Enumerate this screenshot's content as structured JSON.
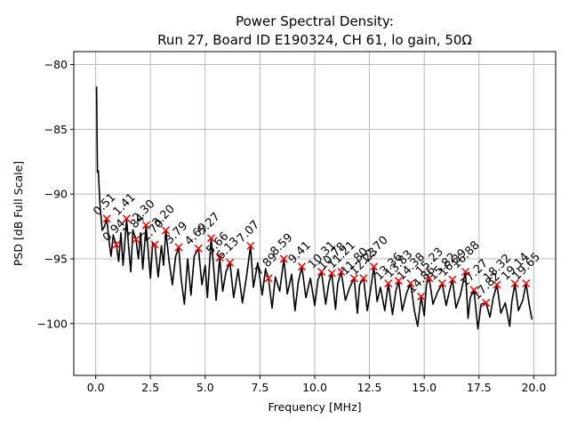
{
  "chart_data": {
    "type": "line",
    "title_line1": "Power Spectral Density:",
    "title_line2": "Run 27, Board ID E190324, CH 61, lo gain, 50Ω",
    "xlabel": "Frequency [MHz]",
    "ylabel": "PSD [dB Full Scale]",
    "xlim": [
      -1.0,
      21.0
    ],
    "ylim": [
      -104.0,
      -79.0
    ],
    "grid": true,
    "x_ticks": [
      0.0,
      2.5,
      5.0,
      7.5,
      10.0,
      12.5,
      15.0,
      17.5,
      20.0
    ],
    "x_tick_labels": [
      "0.0",
      "2.5",
      "5.0",
      "7.5",
      "10.0",
      "12.5",
      "15.0",
      "17.5",
      "20.0"
    ],
    "y_ticks": [
      -80,
      -85,
      -90,
      -95,
      -100
    ],
    "y_tick_labels": [
      "−80",
      "−85",
      "−90",
      "−95",
      "−100"
    ],
    "line_color": "#000000",
    "marker_color": "#ff0000",
    "series": [
      {
        "name": "PSD",
        "points": [
          [
            0.04,
            -81.7
          ],
          [
            0.08,
            -88.3
          ],
          [
            0.12,
            -88.2
          ],
          [
            0.2,
            -91.0
          ],
          [
            0.3,
            -92.8
          ],
          [
            0.4,
            -92.5
          ],
          [
            0.51,
            -91.9
          ],
          [
            0.6,
            -93.5
          ],
          [
            0.7,
            -94.8
          ],
          [
            0.8,
            -93.2
          ],
          [
            0.94,
            -93.9
          ],
          [
            1.05,
            -95.2
          ],
          [
            1.15,
            -93.0
          ],
          [
            1.25,
            -95.5
          ],
          [
            1.41,
            -91.9
          ],
          [
            1.5,
            -94.0
          ],
          [
            1.6,
            -96.0
          ],
          [
            1.7,
            -92.8
          ],
          [
            1.84,
            -93.5
          ],
          [
            1.95,
            -95.0
          ],
          [
            2.05,
            -93.0
          ],
          [
            2.15,
            -95.8
          ],
          [
            2.3,
            -92.4
          ],
          [
            2.4,
            -94.5
          ],
          [
            2.5,
            -96.5
          ],
          [
            2.6,
            -93.8
          ],
          [
            2.7,
            -93.9
          ],
          [
            2.85,
            -96.4
          ],
          [
            3.0,
            -94.0
          ],
          [
            3.1,
            -95.5
          ],
          [
            3.2,
            -92.8
          ],
          [
            3.35,
            -95.2
          ],
          [
            3.5,
            -97.0
          ],
          [
            3.65,
            -94.8
          ],
          [
            3.79,
            -94.1
          ],
          [
            3.9,
            -96.5
          ],
          [
            4.05,
            -98.5
          ],
          [
            4.2,
            -95.0
          ],
          [
            4.35,
            -97.8
          ],
          [
            4.5,
            -94.8
          ],
          [
            4.69,
            -94.2
          ],
          [
            4.85,
            -97.0
          ],
          [
            5.0,
            -95.5
          ],
          [
            5.1,
            -98.0
          ],
          [
            5.27,
            -93.4
          ],
          [
            5.4,
            -96.0
          ],
          [
            5.5,
            -98.2
          ],
          [
            5.66,
            -94.9
          ],
          [
            5.8,
            -97.5
          ],
          [
            5.95,
            -96.0
          ],
          [
            6.13,
            -95.3
          ],
          [
            6.3,
            -98.0
          ],
          [
            6.5,
            -95.8
          ],
          [
            6.7,
            -98.4
          ],
          [
            6.9,
            -96.2
          ],
          [
            7.07,
            -94.0
          ],
          [
            7.2,
            -97.2
          ],
          [
            7.4,
            -95.3
          ],
          [
            7.6,
            -97.8
          ],
          [
            7.75,
            -95.8
          ],
          [
            7.89,
            -96.5
          ],
          [
            8.05,
            -98.8
          ],
          [
            8.2,
            -96.4
          ],
          [
            8.4,
            -97.5
          ],
          [
            8.59,
            -95.0
          ],
          [
            8.75,
            -97.7
          ],
          [
            8.95,
            -96.2
          ],
          [
            9.1,
            -99.0
          ],
          [
            9.25,
            -96.8
          ],
          [
            9.41,
            -95.6
          ],
          [
            9.6,
            -98.0
          ],
          [
            9.8,
            -96.5
          ],
          [
            10.0,
            -98.6
          ],
          [
            10.15,
            -96.6
          ],
          [
            10.31,
            -96.0
          ],
          [
            10.5,
            -98.5
          ],
          [
            10.65,
            -96.8
          ],
          [
            10.78,
            -96.1
          ],
          [
            10.95,
            -98.9
          ],
          [
            11.05,
            -96.9
          ],
          [
            11.21,
            -96.0
          ],
          [
            11.4,
            -98.2
          ],
          [
            11.6,
            -97.2
          ],
          [
            11.8,
            -96.5
          ],
          [
            11.95,
            -99.2
          ],
          [
            12.05,
            -97.0
          ],
          [
            12.23,
            -96.5
          ],
          [
            12.4,
            -99.0
          ],
          [
            12.55,
            -97.4
          ],
          [
            12.7,
            -95.6
          ],
          [
            12.85,
            -98.3
          ],
          [
            13.0,
            -97.2
          ],
          [
            13.2,
            -99.0
          ],
          [
            13.36,
            -96.9
          ],
          [
            13.55,
            -99.3
          ],
          [
            13.7,
            -97.5
          ],
          [
            13.83,
            -96.7
          ],
          [
            14.0,
            -99.0
          ],
          [
            14.2,
            -97.6
          ],
          [
            14.38,
            -96.9
          ],
          [
            14.55,
            -99.0
          ],
          [
            14.7,
            -100.2
          ],
          [
            14.86,
            -97.9
          ],
          [
            15.0,
            -99.4
          ],
          [
            15.1,
            -97.0
          ],
          [
            15.23,
            -96.5
          ],
          [
            15.4,
            -98.5
          ],
          [
            15.6,
            -97.6
          ],
          [
            15.82,
            -96.9
          ],
          [
            16.0,
            -98.6
          ],
          [
            16.15,
            -97.5
          ],
          [
            16.29,
            -96.6
          ],
          [
            16.45,
            -98.8
          ],
          [
            16.65,
            -97.8
          ],
          [
            16.88,
            -96.0
          ],
          [
            17.0,
            -99.6
          ],
          [
            17.1,
            -98.0
          ],
          [
            17.27,
            -97.4
          ],
          [
            17.45,
            -100.4
          ],
          [
            17.6,
            -98.5
          ],
          [
            17.82,
            -98.4
          ],
          [
            18.0,
            -99.5
          ],
          [
            18.15,
            -98.0
          ],
          [
            18.32,
            -97.0
          ],
          [
            18.5,
            -99.2
          ],
          [
            18.7,
            -98.4
          ],
          [
            18.9,
            -100.2
          ],
          [
            19.0,
            -98.3
          ],
          [
            19.14,
            -96.9
          ],
          [
            19.3,
            -99.0
          ],
          [
            19.5,
            -98.2
          ],
          [
            19.65,
            -96.9
          ],
          [
            19.8,
            -98.6
          ],
          [
            19.92,
            -99.7
          ]
        ]
      }
    ],
    "peaks": [
      {
        "f": 0.51,
        "v": -91.9,
        "label": "0.51"
      },
      {
        "f": 0.94,
        "v": -93.9,
        "label": "0.94"
      },
      {
        "f": 1.41,
        "v": -91.9,
        "label": "1.41"
      },
      {
        "f": 1.84,
        "v": -93.5,
        "label": "1.84"
      },
      {
        "f": 2.3,
        "v": -92.4,
        "label": "2.30"
      },
      {
        "f": 2.7,
        "v": -93.9,
        "label": "2.70"
      },
      {
        "f": 3.2,
        "v": -92.8,
        "label": "3.20"
      },
      {
        "f": 3.79,
        "v": -94.1,
        "label": "3.79"
      },
      {
        "f": 4.69,
        "v": -94.2,
        "label": "4.69"
      },
      {
        "f": 5.27,
        "v": -93.4,
        "label": "5.27"
      },
      {
        "f": 5.66,
        "v": -94.9,
        "label": "5.66"
      },
      {
        "f": 6.13,
        "v": -95.3,
        "label": "6.13"
      },
      {
        "f": 7.07,
        "v": -94.0,
        "label": "7.07"
      },
      {
        "f": 7.89,
        "v": -96.5,
        "label": "7.89"
      },
      {
        "f": 8.59,
        "v": -95.0,
        "label": "8.59"
      },
      {
        "f": 9.41,
        "v": -95.6,
        "label": "9.41"
      },
      {
        "f": 10.31,
        "v": -96.0,
        "label": "10.31"
      },
      {
        "f": 10.78,
        "v": -96.1,
        "label": "10.78"
      },
      {
        "f": 11.21,
        "v": -96.0,
        "label": "11.21"
      },
      {
        "f": 11.8,
        "v": -96.5,
        "label": "11.80"
      },
      {
        "f": 12.23,
        "v": -96.5,
        "label": "12.23"
      },
      {
        "f": 12.7,
        "v": -95.6,
        "label": "12.70"
      },
      {
        "f": 13.36,
        "v": -96.9,
        "label": "13.36"
      },
      {
        "f": 13.83,
        "v": -96.7,
        "label": "13.83"
      },
      {
        "f": 14.38,
        "v": -96.9,
        "label": "14.38"
      },
      {
        "f": 14.86,
        "v": -97.9,
        "label": "14.86"
      },
      {
        "f": 15.23,
        "v": -96.5,
        "label": "15.23"
      },
      {
        "f": 15.82,
        "v": -96.9,
        "label": "15.82"
      },
      {
        "f": 16.29,
        "v": -96.6,
        "label": "16.29"
      },
      {
        "f": 16.88,
        "v": -96.0,
        "label": "16.88"
      },
      {
        "f": 17.27,
        "v": -97.4,
        "label": "17.27"
      },
      {
        "f": 17.82,
        "v": -98.4,
        "label": "17.82"
      },
      {
        "f": 18.32,
        "v": -97.0,
        "label": "18.32"
      },
      {
        "f": 19.14,
        "v": -96.9,
        "label": "19.14"
      },
      {
        "f": 19.65,
        "v": -96.9,
        "label": "19.65"
      }
    ]
  }
}
